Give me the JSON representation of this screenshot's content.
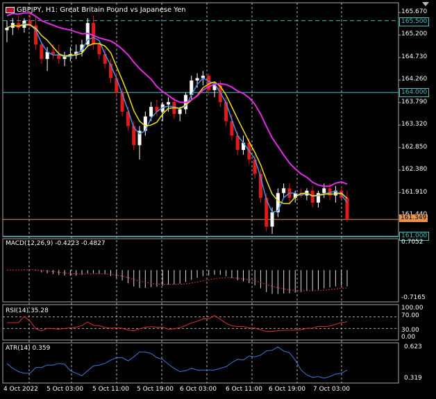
{
  "header": {
    "symbol_title": "GBPJPY, H1:  Great Britain Pound vs Japanese Yen"
  },
  "colors": {
    "background": "#000000",
    "grid": "#ffffff",
    "bull": "#ffffff",
    "bear": "#e11b1b",
    "ma_fast": "#f2e21d",
    "ma_slow": "#e62be6",
    "ma_mid": "#4a90e2",
    "level_line": "#40c4c4",
    "bid_line": "#e89450",
    "macd_signal": "#e03030",
    "rsi_line": "#e03030",
    "atr_line": "#3a7bd5",
    "axis_text": "#ffffff"
  },
  "price_axis": {
    "ticks": [
      "165.670",
      "165.200",
      "164.730",
      "164.260",
      "163.790",
      "163.320",
      "162.850",
      "162.380",
      "161.910",
      "161.440"
    ],
    "tag_165500": "165.500",
    "tag_164000": "164.000",
    "tag_bid": "161.349",
    "tag_161000": "161.000"
  },
  "macd": {
    "title": "MACD(12,26,9) -0.4223 -0.4827",
    "top": "0.7052",
    "bottom": "-0.7165"
  },
  "rsi": {
    "title": "RSI(14) 35.28",
    "levels": [
      "100.00",
      "70.00",
      "30.00",
      "0.00"
    ]
  },
  "atr": {
    "title": "ATR(14) 0.359",
    "top": "0.623",
    "bottom": "0.319"
  },
  "time_axis": [
    "4 Oct 2022",
    "5 Oct 03:00",
    "5 Oct 11:00",
    "5 Oct 19:00",
    "6 Oct 03:00",
    "6 Oct 11:00",
    "6 Oct 19:00",
    "7 Oct 03:00"
  ],
  "chart_data": {
    "type": "candlestick",
    "symbol": "GBPJPY",
    "timeframe": "H1",
    "candles": [
      [
        165.3,
        165.5,
        165.05,
        165.35
      ],
      [
        165.35,
        165.55,
        165.2,
        165.45
      ],
      [
        165.45,
        165.6,
        165.3,
        165.35
      ],
      [
        165.35,
        165.55,
        165.25,
        165.5
      ],
      [
        165.5,
        165.7,
        165.35,
        165.4
      ],
      [
        165.4,
        165.6,
        164.9,
        165.0
      ],
      [
        165.0,
        165.05,
        164.6,
        164.7
      ],
      [
        164.7,
        164.95,
        164.45,
        164.85
      ],
      [
        164.85,
        165.0,
        164.7,
        164.8
      ],
      [
        164.8,
        165.0,
        164.6,
        164.7
      ],
      [
        164.7,
        164.85,
        164.55,
        164.75
      ],
      [
        164.75,
        164.95,
        164.65,
        164.8
      ],
      [
        164.8,
        165.0,
        164.7,
        164.85
      ],
      [
        164.85,
        165.1,
        164.75,
        165.0
      ],
      [
        165.0,
        165.55,
        164.95,
        165.45
      ],
      [
        165.45,
        165.6,
        164.9,
        165.0
      ],
      [
        165.0,
        165.05,
        164.7,
        164.8
      ],
      [
        164.8,
        164.9,
        164.5,
        164.6
      ],
      [
        164.6,
        164.7,
        164.2,
        164.3
      ],
      [
        164.3,
        164.4,
        163.9,
        164.0
      ],
      [
        164.0,
        164.1,
        163.5,
        163.6
      ],
      [
        163.6,
        163.7,
        163.2,
        163.3
      ],
      [
        163.3,
        163.4,
        162.8,
        162.9
      ],
      [
        162.9,
        163.3,
        162.6,
        163.2
      ],
      [
        163.2,
        163.6,
        163.1,
        163.5
      ],
      [
        163.5,
        163.8,
        163.4,
        163.7
      ],
      [
        163.7,
        163.85,
        163.5,
        163.6
      ],
      [
        163.6,
        163.8,
        163.4,
        163.75
      ],
      [
        163.75,
        163.9,
        163.6,
        163.8
      ],
      [
        163.8,
        163.9,
        163.45,
        163.55
      ],
      [
        163.55,
        163.7,
        163.4,
        163.65
      ],
      [
        163.65,
        164.0,
        163.55,
        163.95
      ],
      [
        163.95,
        164.35,
        163.85,
        164.25
      ],
      [
        164.25,
        164.4,
        164.1,
        164.3
      ],
      [
        164.3,
        164.45,
        164.15,
        164.35
      ],
      [
        164.35,
        164.4,
        163.95,
        164.05
      ],
      [
        164.05,
        164.2,
        163.9,
        164.15
      ],
      [
        164.15,
        164.25,
        163.7,
        163.8
      ],
      [
        163.8,
        163.9,
        163.3,
        163.4
      ],
      [
        163.4,
        163.55,
        163.0,
        163.1
      ],
      [
        163.1,
        163.2,
        162.7,
        162.8
      ],
      [
        162.8,
        163.1,
        162.7,
        162.95
      ],
      [
        162.95,
        163.05,
        162.5,
        162.6
      ],
      [
        162.6,
        162.7,
        162.2,
        162.3
      ],
      [
        162.3,
        162.4,
        161.7,
        161.8
      ],
      [
        161.8,
        161.9,
        161.1,
        161.2
      ],
      [
        161.2,
        161.6,
        161.05,
        161.5
      ],
      [
        161.5,
        162.0,
        161.4,
        161.9
      ],
      [
        161.9,
        162.1,
        161.8,
        162.0
      ],
      [
        162.0,
        162.1,
        161.7,
        161.8
      ],
      [
        161.8,
        161.95,
        161.7,
        161.9
      ],
      [
        161.9,
        162.0,
        161.8,
        161.85
      ],
      [
        161.85,
        162.0,
        161.75,
        161.95
      ],
      [
        161.95,
        162.05,
        161.6,
        161.7
      ],
      [
        161.7,
        161.95,
        161.6,
        161.9
      ],
      [
        161.9,
        162.1,
        161.8,
        162.0
      ],
      [
        162.0,
        162.1,
        161.75,
        161.85
      ],
      [
        161.85,
        162.05,
        161.7,
        161.95
      ],
      [
        161.95,
        162.05,
        161.75,
        161.8
      ],
      [
        161.8,
        161.95,
        161.3,
        161.35
      ]
    ],
    "levels": [
      165.5,
      164.0,
      161.0
    ],
    "bid": 161.349,
    "macd_last": -0.4223,
    "macd_signal_last": -0.4827,
    "rsi_last": 35.28,
    "atr_last": 0.359
  }
}
